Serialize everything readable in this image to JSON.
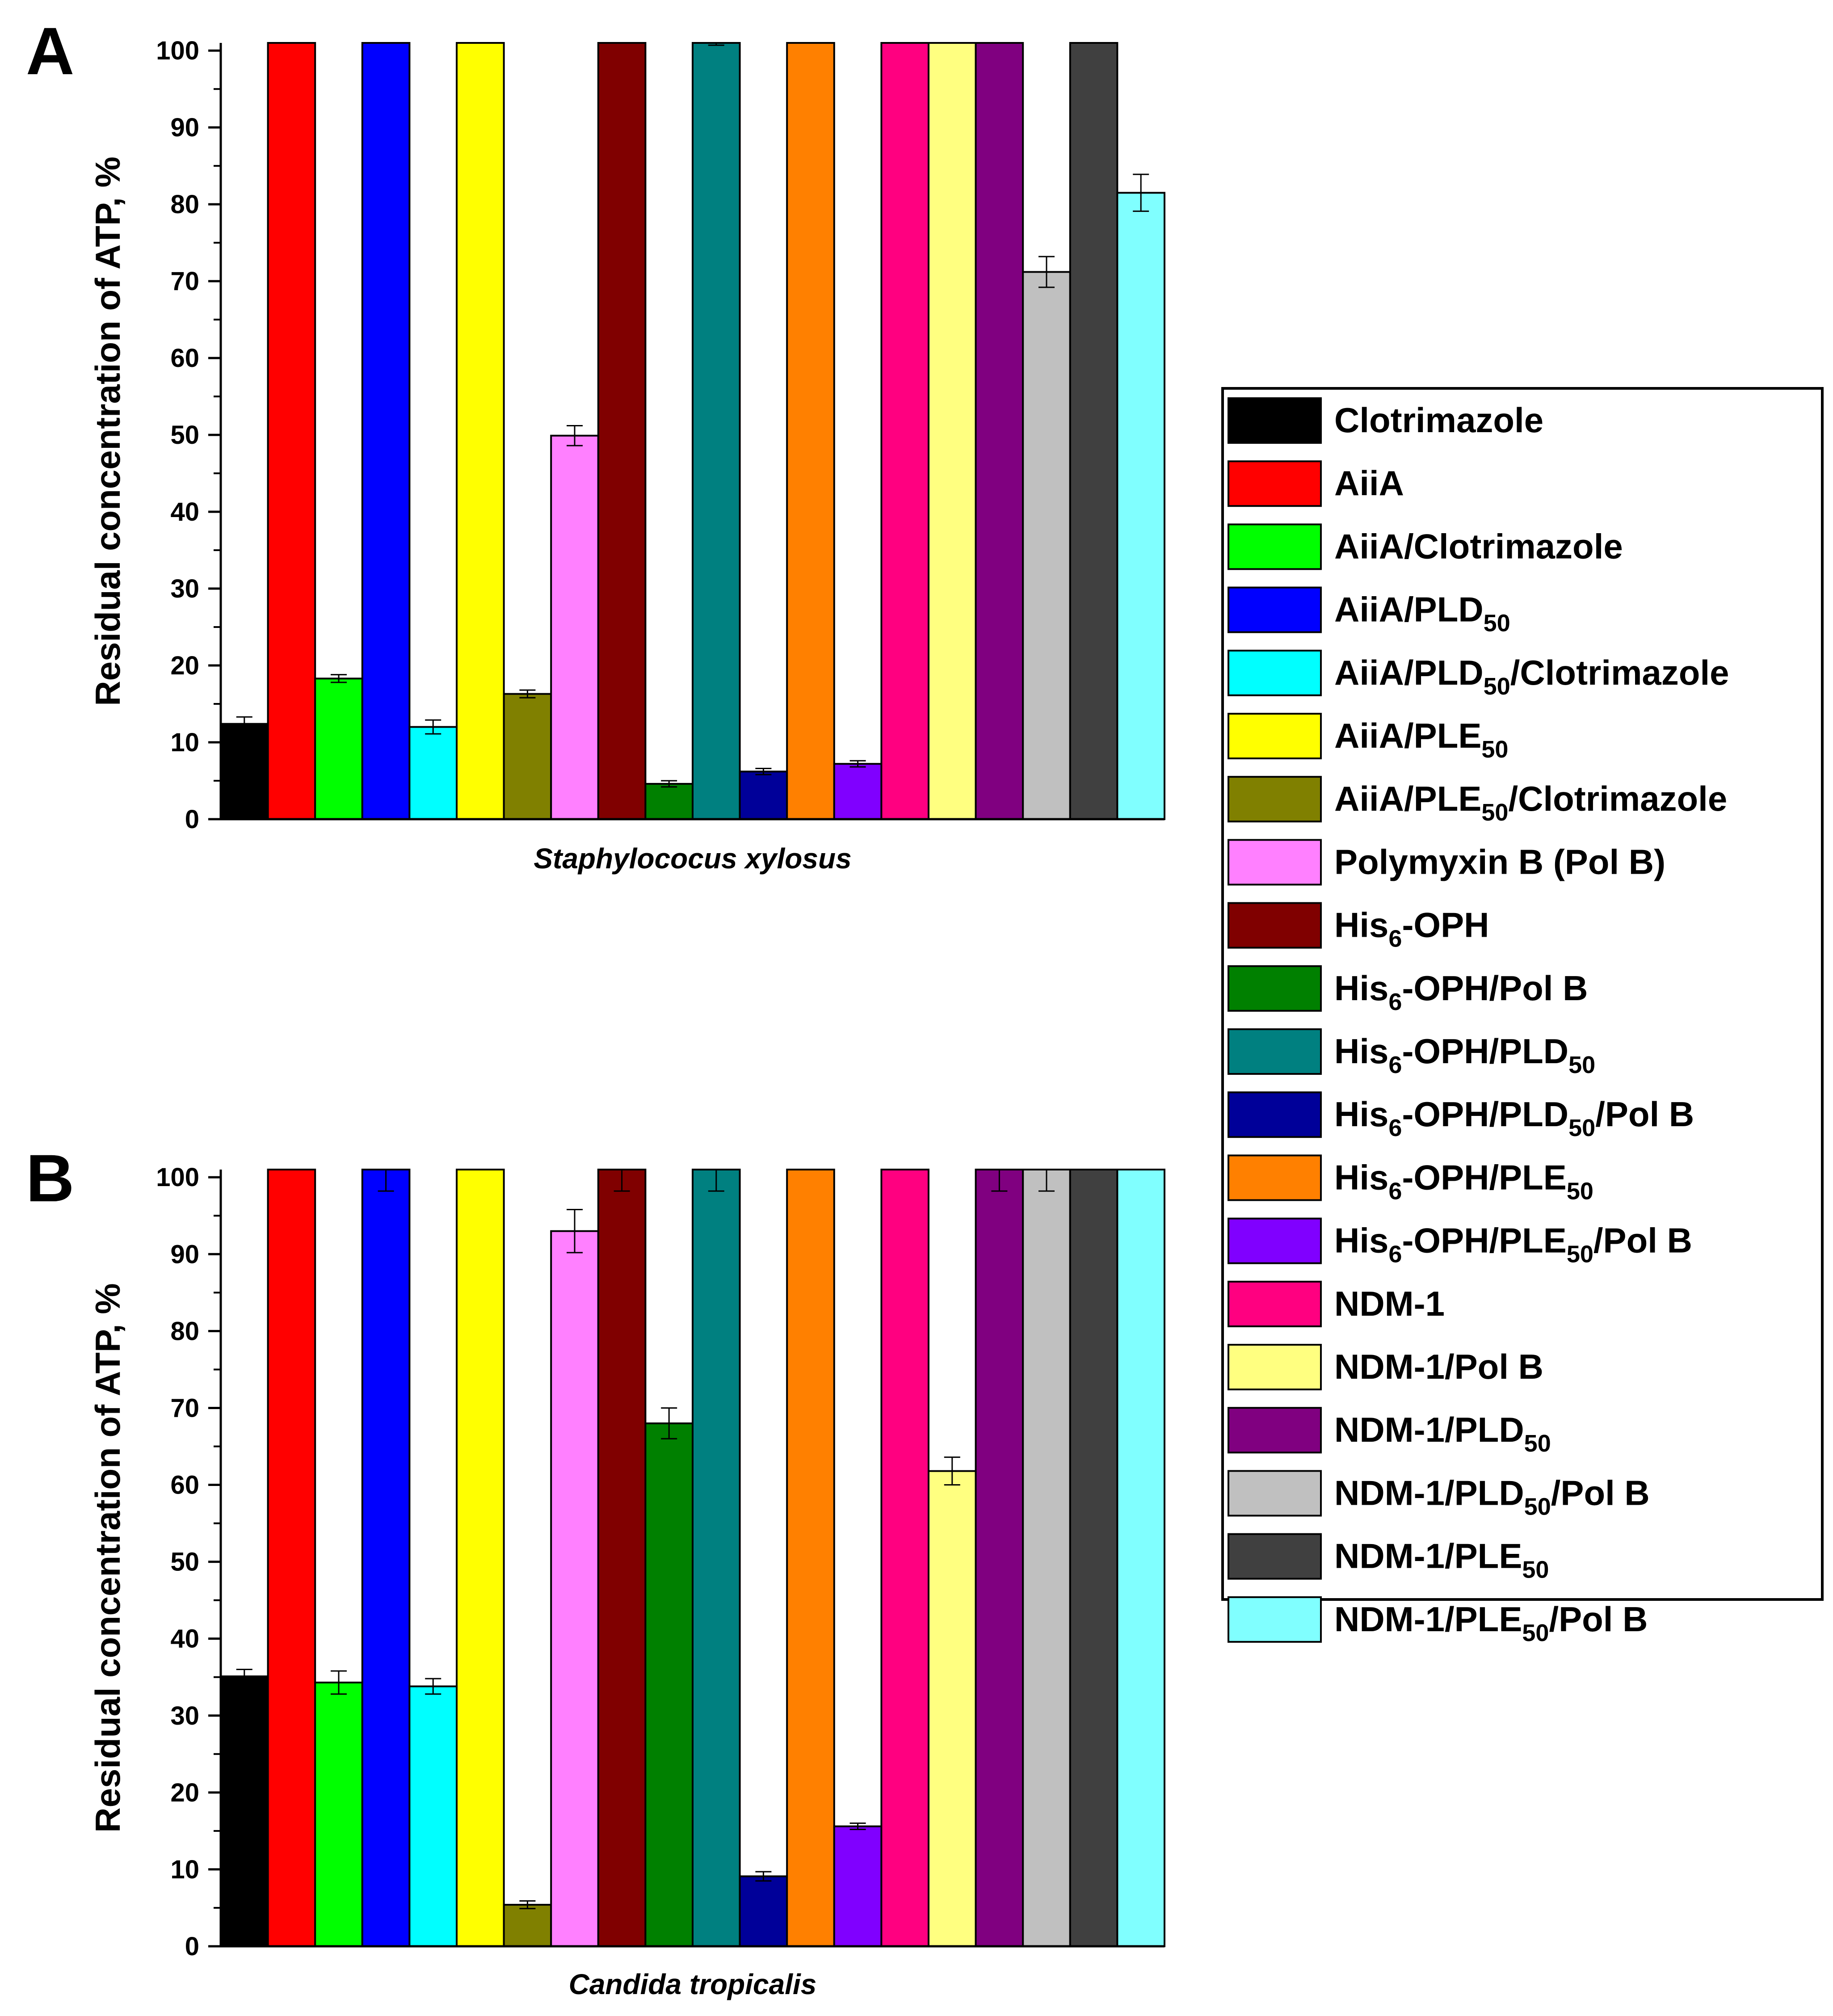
{
  "figure": {
    "panels": [
      "A",
      "B"
    ]
  },
  "series_styles": [
    {
      "name": "Clotrimazole",
      "base": "Clotrimazole",
      "sub": "",
      "rest": "",
      "color": "#000000"
    },
    {
      "name": "AiiA",
      "base": "AiiA",
      "sub": "",
      "rest": "",
      "color": "#ff0000"
    },
    {
      "name": "AiiA/Clotrimazole",
      "base": "AiiA/Clotrimazole",
      "sub": "",
      "rest": "",
      "color": "#00ff00"
    },
    {
      "name": "AiiA/PLD50",
      "base": "AiiA/PLD",
      "sub": "50",
      "rest": "",
      "color": "#0000ff"
    },
    {
      "name": "AiiA/PLD50/Clotrimazole",
      "base": "AiiA/PLD",
      "sub": "50",
      "rest": "/Clotrimazole",
      "color": "#00ffff"
    },
    {
      "name": "AiiA/PLE50",
      "base": "AiiA/PLE",
      "sub": "50",
      "rest": "",
      "color": "#ffff00"
    },
    {
      "name": "AiiA/PLE50/Clotrimazole",
      "base": "AiiA/PLE",
      "sub": "50",
      "rest": "/Clotrimazole",
      "color": "#808000"
    },
    {
      "name": "Polymyxin B (Pol B)",
      "base": "Polymyxin B (Pol B)",
      "sub": "",
      "rest": "",
      "color": "#ff80ff"
    },
    {
      "name": "His6-OPH",
      "base": "His",
      "sub": "6",
      "rest": "-OPH",
      "color": "#800000"
    },
    {
      "name": "His6-OPH/Pol B",
      "base": "His",
      "sub": "6",
      "rest": "-OPH/Pol B",
      "color": "#008000"
    },
    {
      "name": "His6-OPH/PLD50",
      "base": "His",
      "sub": "6",
      "rest": "-OPH/PLD",
      "sub2": "50",
      "rest2": "",
      "color": "#008080"
    },
    {
      "name": "His6-OPH/PLD50/Pol B",
      "base": "His",
      "sub": "6",
      "rest": "-OPH/PLD",
      "sub2": "50",
      "rest2": "/Pol B",
      "color": "#000099"
    },
    {
      "name": "His6-OPH/PLE50",
      "base": "His",
      "sub": "6",
      "rest": "-OPH/PLE",
      "sub2": "50",
      "rest2": "",
      "color": "#ff8000"
    },
    {
      "name": "His6-OPH/PLE50/Pol B",
      "base": "His",
      "sub": "6",
      "rest": "-OPH/PLE",
      "sub2": "50",
      "rest2": "/Pol B",
      "color": "#8000ff"
    },
    {
      "name": "NDM-1",
      "base": "NDM-1",
      "sub": "",
      "rest": "",
      "color": "#ff0080"
    },
    {
      "name": "NDM-1/Pol B",
      "base": "NDM-1/Pol B",
      "sub": "",
      "rest": "",
      "color": "#ffff80"
    },
    {
      "name": "NDM-1/PLD50",
      "base": "NDM-1/PLD",
      "sub": "50",
      "rest": "",
      "color": "#800080"
    },
    {
      "name": "NDM-1/PLD50/Pol B",
      "base": "NDM-1/PLD",
      "sub": "50",
      "rest": "/Pol B",
      "color": "#c0c0c0"
    },
    {
      "name": "NDM-1/PLE50",
      "base": "NDM-1/PLE",
      "sub": "50",
      "rest": "",
      "color": "#404040"
    },
    {
      "name": "NDM-1/PLE50/Pol B",
      "base": "NDM-1/PLE",
      "sub": "50",
      "rest": "/Pol B",
      "color": "#80ffff"
    }
  ],
  "chart_data": [
    {
      "type": "bar",
      "panel_label": "A",
      "title": "",
      "xlabel": "Staphylococus xylosus",
      "ylabel": "Residual concentration of ATP, %",
      "ylim": [
        0,
        101
      ],
      "yticks": [
        0,
        10,
        20,
        30,
        40,
        50,
        60,
        70,
        80,
        90,
        100
      ],
      "categories": [
        "Clotrimazole",
        "AiiA",
        "AiiA/Clotrimazole",
        "AiiA/PLD50",
        "AiiA/PLD50/Clotrimazole",
        "AiiA/PLE50",
        "AiiA/PLE50/Clotrimazole",
        "Polymyxin B (Pol B)",
        "His6-OPH",
        "His6-OPH/Pol B",
        "His6-OPH/PLD50",
        "His6-OPH/PLD50/Pol B",
        "His6-OPH/PLE50",
        "His6-OPH/PLE50/Pol B",
        "NDM-1",
        "NDM-1/Pol B",
        "NDM-1/PLD50",
        "NDM-1/PLD50/Pol B",
        "NDM-1/PLE50",
        "NDM-1/PLE50/Pol B"
      ],
      "values": [
        12.4,
        101,
        18.3,
        101,
        12.0,
        101,
        16.3,
        49.9,
        101,
        4.6,
        101,
        6.2,
        101,
        7.2,
        101,
        101,
        101,
        71.2,
        101,
        81.5
      ],
      "errors": [
        0.9,
        null,
        0.5,
        null,
        0.9,
        null,
        0.5,
        1.3,
        null,
        0.4,
        0.3,
        0.4,
        null,
        0.4,
        null,
        null,
        null,
        2.0,
        null,
        2.4
      ]
    },
    {
      "type": "bar",
      "panel_label": "B",
      "title": "",
      "xlabel": "Candida tropicalis",
      "ylabel": "Residual concentration of ATP, %",
      "ylim": [
        0,
        101
      ],
      "yticks": [
        0,
        10,
        20,
        30,
        40,
        50,
        60,
        70,
        80,
        90,
        100
      ],
      "categories": [
        "Clotrimazole",
        "AiiA",
        "AiiA/Clotrimazole",
        "AiiA/PLD50",
        "AiiA/PLD50/Clotrimazole",
        "AiiA/PLE50",
        "AiiA/PLE50/Clotrimazole",
        "Polymyxin B (Pol B)",
        "His6-OPH",
        "His6-OPH/Pol B",
        "His6-OPH/PLD50",
        "His6-OPH/PLD50/Pol B",
        "His6-OPH/PLE50",
        "His6-OPH/PLE50/Pol B",
        "NDM-1",
        "NDM-1/Pol B",
        "NDM-1/PLD50",
        "NDM-1/PLD50/Pol B",
        "NDM-1/PLE50",
        "NDM-1/PLE50/Pol B"
      ],
      "values": [
        35.1,
        101,
        34.3,
        101,
        33.8,
        101,
        5.4,
        93.0,
        101,
        68.0,
        101,
        9.1,
        101,
        15.6,
        101,
        61.8,
        101,
        101,
        101,
        101
      ],
      "errors": [
        0.9,
        null,
        1.5,
        2.8,
        1.0,
        null,
        0.5,
        2.8,
        2.8,
        2.0,
        2.8,
        0.6,
        null,
        0.4,
        null,
        1.8,
        2.8,
        2.8,
        null,
        null
      ]
    }
  ]
}
